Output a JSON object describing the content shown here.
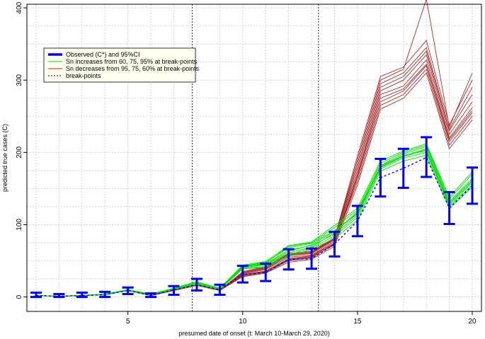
{
  "chart_data": {
    "type": "line",
    "title": "",
    "xlabel": "presumed date of onset (t: March 10-March 29, 2020)",
    "ylabel": "predicted true cases (C)",
    "xlim": [
      0.6,
      20.4
    ],
    "ylim": [
      -20,
      405
    ],
    "x_ticks": [
      5,
      10,
      15,
      20
    ],
    "y_ticks": [
      0,
      100,
      200,
      300,
      400
    ],
    "grid": true,
    "legend_position": "top-left",
    "break_points": [
      7.8,
      13.3
    ],
    "x": [
      1,
      2,
      3,
      4,
      5,
      6,
      7,
      8,
      9,
      10,
      11,
      12,
      13,
      14,
      15,
      16,
      17,
      18,
      19,
      20
    ],
    "observed": {
      "values": [
        2,
        1,
        2,
        3,
        9,
        2,
        10,
        17,
        10,
        31,
        34,
        52,
        53,
        73,
        105,
        165,
        178,
        193,
        123,
        154
      ],
      "lower": [
        0,
        0,
        0,
        0,
        4,
        0,
        3,
        9,
        3,
        20,
        22,
        38,
        39,
        56,
        84,
        139,
        151,
        166,
        101,
        129
      ],
      "upper": [
        6,
        4,
        6,
        7,
        13,
        5,
        15,
        25,
        17,
        43,
        46,
        66,
        67,
        90,
        126,
        191,
        205,
        221,
        145,
        179
      ]
    },
    "green_series": [
      [
        2,
        1,
        2,
        3,
        9,
        3,
        11,
        17,
        10,
        40,
        42,
        58,
        68,
        84,
        110,
        177,
        192,
        200,
        125,
        155
      ],
      [
        2,
        1,
        2,
        3,
        9,
        3,
        11,
        19,
        11,
        42,
        46,
        65,
        71,
        87,
        113,
        180,
        195,
        205,
        129,
        160
      ],
      [
        2,
        1,
        2,
        4,
        10,
        4,
        12,
        21,
        12,
        43,
        48,
        68,
        74,
        92,
        116,
        182,
        198,
        208,
        132,
        164
      ],
      [
        2,
        1,
        2,
        4,
        10,
        4,
        12,
        20,
        11,
        43,
        47,
        70,
        75,
        96,
        120,
        185,
        200,
        210,
        135,
        170
      ],
      [
        2,
        1,
        2,
        3,
        9,
        3,
        11,
        18,
        10,
        41,
        44,
        61,
        69,
        89,
        118,
        181,
        196,
        202,
        127,
        158
      ],
      [
        2,
        1,
        2,
        3,
        9,
        3,
        10,
        17,
        10,
        39,
        41,
        56,
        66,
        81,
        106,
        174,
        188,
        196,
        122,
        152
      ],
      [
        2,
        1,
        2,
        4,
        10,
        4,
        12,
        21,
        12,
        44,
        49,
        71,
        76,
        99,
        123,
        188,
        202,
        212,
        138,
        173
      ],
      [
        2,
        1,
        2,
        3,
        9,
        3,
        11,
        19,
        11,
        42,
        45,
        63,
        72,
        91,
        115,
        179,
        194,
        204,
        130,
        162
      ]
    ],
    "red_series": [
      [
        2,
        1,
        2,
        3,
        9,
        2,
        9,
        16,
        9,
        30,
        35,
        51,
        55,
        72,
        165,
        270,
        285,
        320,
        215,
        255
      ],
      [
        2,
        1,
        2,
        3,
        9,
        2,
        9,
        16,
        9,
        32,
        38,
        55,
        58,
        77,
        175,
        285,
        300,
        335,
        225,
        270
      ],
      [
        2,
        1,
        2,
        3,
        9,
        2,
        9,
        16,
        9,
        34,
        40,
        58,
        61,
        80,
        185,
        295,
        310,
        345,
        232,
        290
      ],
      [
        2,
        1,
        2,
        3,
        9,
        2,
        9,
        16,
        9,
        28,
        33,
        48,
        52,
        70,
        155,
        260,
        275,
        310,
        205,
        245
      ],
      [
        2,
        1,
        2,
        3,
        9,
        2,
        9,
        16,
        9,
        31,
        36,
        53,
        57,
        75,
        170,
        280,
        292,
        328,
        220,
        262
      ],
      [
        2,
        1,
        2,
        3,
        9,
        2,
        9,
        16,
        9,
        33,
        39,
        57,
        60,
        79,
        180,
        290,
        305,
        340,
        230,
        280
      ],
      [
        2,
        1,
        2,
        3,
        9,
        2,
        9,
        16,
        9,
        30,
        35,
        52,
        56,
        74,
        160,
        265,
        280,
        315,
        210,
        250
      ],
      [
        2,
        1,
        2,
        3,
        9,
        2,
        9,
        16,
        9,
        35,
        42,
        60,
        63,
        82,
        195,
        305,
        318,
        355,
        238,
        300
      ],
      [
        2,
        1,
        2,
        3,
        9,
        2,
        9,
        16,
        9,
        29,
        34,
        50,
        54,
        73,
        168,
        275,
        288,
        322,
        218,
        258
      ],
      [
        2,
        1,
        2,
        3,
        9,
        2,
        9,
        16,
        9,
        34,
        41,
        59,
        62,
        81,
        190,
        300,
        315,
        412,
        235,
        310
      ]
    ],
    "legend": [
      {
        "label": "Observed (C*) and 95%CI",
        "color": "#0000ee",
        "style": "thick"
      },
      {
        "label": "Sn increases from 60, 75, 95% at break-points",
        "color": "#00dd00",
        "style": "solid"
      },
      {
        "label": "Sn decreases from 95, 75, 60% at break-points",
        "color": "#a52a2a",
        "style": "solid"
      },
      {
        "label": "break-points",
        "color": "#000000",
        "style": "dotted"
      }
    ],
    "colors": {
      "observed": "#0000ee",
      "green": "#00dd00",
      "red": "#a52a2a",
      "grid": "#c8c8c8",
      "legend_bg": "#fffff0"
    }
  }
}
